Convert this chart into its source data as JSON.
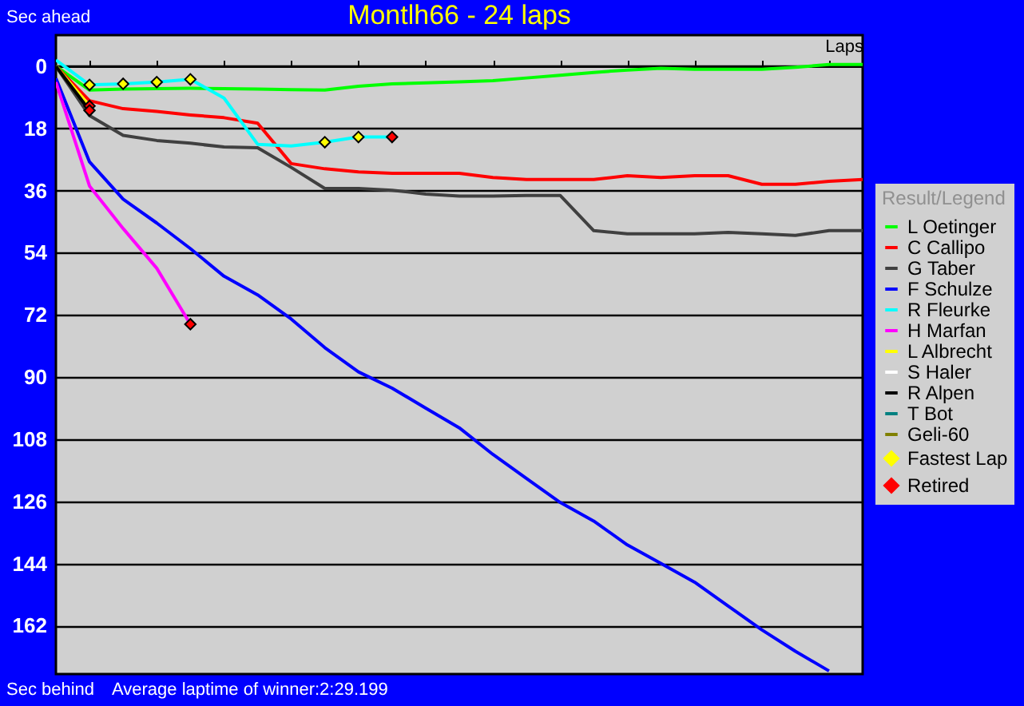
{
  "chart_data": {
    "type": "line",
    "title": "Montlh66 - 24 laps",
    "xlabel": "Laps",
    "legend_title": "Result/Legend",
    "annotations": [
      "Sec ahead",
      "Sec behind",
      "Average laptime of winner:2:29.199"
    ],
    "categories": [
      null,
      null,
      null,
      null,
      null,
      null,
      null,
      null,
      null,
      null,
      null,
      null,
      null,
      null,
      null,
      null,
      null,
      null,
      null,
      null,
      null,
      null,
      null,
      null,
      null
    ],
    "ylim": [
      176,
      -9
    ],
    "yticks": [
      0,
      18,
      36,
      54,
      72,
      90,
      108,
      126,
      144,
      162
    ],
    "grid": "y",
    "legend": "right",
    "line_style": "solid",
    "tick_labels": "y",
    "series": [
      {
        "name": "L Oetinger",
        "color": "#00ff00",
        "values": [
          0,
          6.9,
          6.6,
          6.5,
          6.4,
          6.5,
          6.6,
          6.8,
          6.9,
          5.8,
          5.1,
          4.8,
          4.5,
          4.2,
          3.4,
          2.6,
          1.8,
          1.1,
          0.6,
          0.9,
          0.9,
          0.9,
          0.3,
          -0.5,
          -0.5
        ]
      },
      {
        "name": "C Callipo",
        "color": "#ff0000",
        "values": [
          0,
          10.0,
          12.3,
          13.1,
          14.1,
          14.9,
          16.5,
          28.2,
          29.7,
          30.6,
          31.0,
          31.0,
          31.0,
          32.2,
          32.8,
          32.8,
          32.8,
          31.7,
          32.2,
          31.7,
          31.7,
          34.2,
          34.2,
          33.3,
          32.8
        ]
      },
      {
        "name": "G Taber",
        "color": "#404040",
        "values": [
          0,
          14.3,
          20.0,
          21.5,
          22.3,
          23.4,
          23.6,
          29.3,
          35.4,
          35.4,
          35.9,
          37.0,
          37.6,
          37.6,
          37.4,
          37.4,
          47.6,
          48.5,
          48.5,
          48.5,
          48.1,
          48.5,
          49.0,
          47.6,
          47.6
        ]
      },
      {
        "name": "F Schulze",
        "color": "#0000ff",
        "values": [
          3.5,
          27.7,
          38.5,
          45.4,
          52.8,
          60.8,
          66.2,
          73.2,
          81.5,
          88.5,
          93.2,
          99.0,
          104.7,
          112.4,
          119.4,
          126.3,
          131.7,
          138.6,
          144.0,
          149.4,
          156.3,
          163.2,
          169.4,
          175.1,
          null
        ]
      },
      {
        "name": "R Fleurke",
        "color": "#00ffff",
        "values": [
          -1.8,
          5.4,
          5.1,
          4.6,
          3.8,
          9.2,
          22.6,
          23.1,
          22.0,
          20.5,
          20.5,
          null,
          null,
          null,
          null,
          null,
          null,
          null,
          null,
          null,
          null,
          null,
          null,
          null,
          null
        ]
      },
      {
        "name": "H Marfan",
        "color": "#ff00ff",
        "values": [
          4.6,
          34.7,
          47.0,
          58.5,
          74.7,
          null,
          null,
          null,
          null,
          null,
          null,
          null,
          null,
          null,
          null,
          null,
          null,
          null,
          null,
          null,
          null,
          null,
          null,
          null,
          null
        ]
      },
      {
        "name": "L Albrecht",
        "color": "#ffff00",
        "values": [
          0,
          11.5,
          null,
          null,
          null,
          null,
          null,
          null,
          null,
          null,
          null,
          null,
          null,
          null,
          null,
          null,
          null,
          null,
          null,
          null,
          null,
          null,
          null,
          null,
          null
        ]
      },
      {
        "name": "S Haler",
        "color": "#ffffff",
        "values": [
          null,
          null,
          null,
          null,
          null,
          null,
          null,
          null,
          null,
          null,
          null,
          null,
          null,
          null,
          null,
          null,
          null,
          null,
          null,
          null,
          null,
          null,
          null,
          null,
          null
        ]
      },
      {
        "name": "R Alpen",
        "color": "#000000",
        "values": [
          0,
          12.8,
          null,
          null,
          null,
          null,
          null,
          null,
          null,
          null,
          null,
          null,
          null,
          null,
          null,
          null,
          null,
          null,
          null,
          null,
          null,
          null,
          null,
          null,
          null
        ]
      },
      {
        "name": "T Bot",
        "color": "#008080",
        "values": [
          null,
          null,
          null,
          null,
          null,
          null,
          null,
          null,
          null,
          null,
          null,
          null,
          null,
          null,
          null,
          null,
          null,
          null,
          null,
          null,
          null,
          null,
          null,
          null,
          null
        ]
      },
      {
        "name": "Geli-60",
        "color": "#808000",
        "values": [
          null,
          null,
          null,
          null,
          null,
          null,
          null,
          null,
          null,
          null,
          null,
          null,
          null,
          null,
          null,
          null,
          null,
          null,
          null,
          null,
          null,
          null,
          null,
          null,
          null
        ]
      },
      {
        "name": "Fastest Lap",
        "type": "scatter",
        "marker": "diamond",
        "color": "#ffff00",
        "values": [
          null,
          5.4,
          5.1,
          4.6,
          3.8,
          null,
          null,
          null,
          22.0,
          20.5,
          null,
          null,
          null,
          null,
          null,
          null,
          null,
          null,
          null,
          null,
          null,
          null,
          null,
          null,
          null
        ]
      },
      {
        "name": "Retired",
        "type": "scatter",
        "marker": "diamond",
        "color": "#ff0000",
        "values": [
          null,
          11.5,
          null,
          null,
          74.7,
          null,
          null,
          null,
          null,
          null,
          20.5,
          null,
          null,
          null,
          null,
          null,
          null,
          null,
          null,
          null,
          null,
          null,
          null,
          null,
          null
        ]
      },
      {
        "type": "scatter",
        "marker": "diamond",
        "color": "#ff0000",
        "values": [
          null,
          12.8,
          null,
          null,
          null,
          null,
          null,
          null,
          null,
          null,
          null,
          null,
          null,
          null,
          null,
          null,
          null,
          null,
          null,
          null,
          null,
          null,
          null,
          null,
          null
        ]
      }
    ]
  }
}
